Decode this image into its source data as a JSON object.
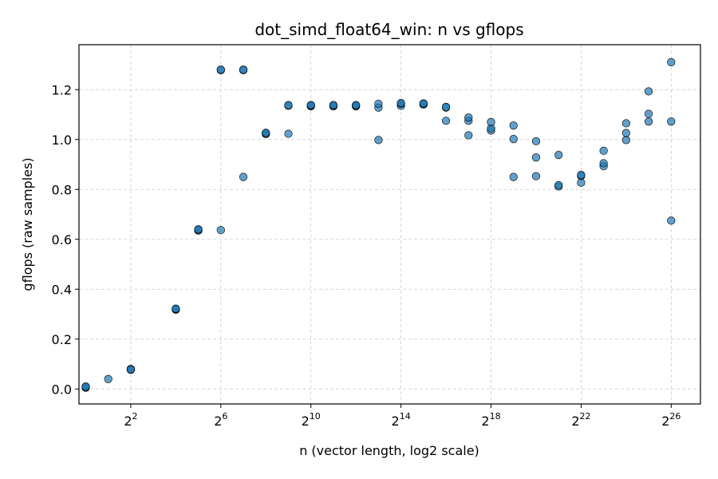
{
  "chart_data": {
    "type": "scatter",
    "title": "dot_simd_float64_win: n vs gflops",
    "xlabel": "n (vector length, log2 scale)",
    "ylabel": "gflops (raw samples)",
    "x_scale": "log2",
    "xlim_exponent": [
      -0.3,
      27.3
    ],
    "ylim": [
      -0.06,
      1.38
    ],
    "grid": true,
    "point_color": "#1f77b4",
    "x_ticks": [
      {
        "base": "2",
        "exp": "2",
        "value": 4
      },
      {
        "base": "2",
        "exp": "6",
        "value": 64
      },
      {
        "base": "2",
        "exp": "10",
        "value": 1024
      },
      {
        "base": "2",
        "exp": "14",
        "value": 16384
      },
      {
        "base": "2",
        "exp": "18",
        "value": 262144
      },
      {
        "base": "2",
        "exp": "22",
        "value": 4194304
      },
      {
        "base": "2",
        "exp": "26",
        "value": 67108864
      }
    ],
    "y_ticks": [
      {
        "label": "0.0",
        "value": 0.0
      },
      {
        "label": "0.2",
        "value": 0.2
      },
      {
        "label": "0.4",
        "value": 0.4
      },
      {
        "label": "0.6",
        "value": 0.6
      },
      {
        "label": "0.8",
        "value": 0.8
      },
      {
        "label": "1.0",
        "value": 1.0
      },
      {
        "label": "1.2",
        "value": 1.2
      }
    ],
    "points": [
      {
        "x": 1,
        "y": 0.005
      },
      {
        "x": 1,
        "y": 0.008
      },
      {
        "x": 1,
        "y": 0.01
      },
      {
        "x": 2,
        "y": 0.04
      },
      {
        "x": 4,
        "y": 0.077
      },
      {
        "x": 4,
        "y": 0.08
      },
      {
        "x": 4,
        "y": 0.078
      },
      {
        "x": 16,
        "y": 0.318
      },
      {
        "x": 16,
        "y": 0.32
      },
      {
        "x": 16,
        "y": 0.322
      },
      {
        "x": 32,
        "y": 0.635
      },
      {
        "x": 32,
        "y": 0.638
      },
      {
        "x": 32,
        "y": 0.64
      },
      {
        "x": 64,
        "y": 0.637
      },
      {
        "x": 64,
        "y": 1.278
      },
      {
        "x": 64,
        "y": 1.28
      },
      {
        "x": 128,
        "y": 0.85
      },
      {
        "x": 128,
        "y": 1.278
      },
      {
        "x": 128,
        "y": 1.28
      },
      {
        "x": 256,
        "y": 1.022
      },
      {
        "x": 256,
        "y": 1.025
      },
      {
        "x": 256,
        "y": 1.027
      },
      {
        "x": 512,
        "y": 1.023
      },
      {
        "x": 512,
        "y": 1.135
      },
      {
        "x": 512,
        "y": 1.138
      },
      {
        "x": 1024,
        "y": 1.133
      },
      {
        "x": 1024,
        "y": 1.136
      },
      {
        "x": 1024,
        "y": 1.138
      },
      {
        "x": 2048,
        "y": 1.133
      },
      {
        "x": 2048,
        "y": 1.136
      },
      {
        "x": 2048,
        "y": 1.138
      },
      {
        "x": 4096,
        "y": 1.133
      },
      {
        "x": 4096,
        "y": 1.136
      },
      {
        "x": 4096,
        "y": 1.138
      },
      {
        "x": 8192,
        "y": 0.998
      },
      {
        "x": 8192,
        "y": 1.128
      },
      {
        "x": 8192,
        "y": 1.143
      },
      {
        "x": 16384,
        "y": 1.135
      },
      {
        "x": 16384,
        "y": 1.143
      },
      {
        "x": 16384,
        "y": 1.146
      },
      {
        "x": 32768,
        "y": 1.14
      },
      {
        "x": 32768,
        "y": 1.143
      },
      {
        "x": 32768,
        "y": 1.145
      },
      {
        "x": 65536,
        "y": 1.075
      },
      {
        "x": 65536,
        "y": 1.128
      },
      {
        "x": 65536,
        "y": 1.131
      },
      {
        "x": 131072,
        "y": 1.017
      },
      {
        "x": 131072,
        "y": 1.075
      },
      {
        "x": 131072,
        "y": 1.088
      },
      {
        "x": 262144,
        "y": 1.036
      },
      {
        "x": 262144,
        "y": 1.045
      },
      {
        "x": 262144,
        "y": 1.07
      },
      {
        "x": 524288,
        "y": 0.85
      },
      {
        "x": 524288,
        "y": 1.002
      },
      {
        "x": 524288,
        "y": 1.056
      },
      {
        "x": 1048576,
        "y": 0.853
      },
      {
        "x": 1048576,
        "y": 0.928
      },
      {
        "x": 1048576,
        "y": 0.993
      },
      {
        "x": 2097152,
        "y": 0.812
      },
      {
        "x": 2097152,
        "y": 0.817
      },
      {
        "x": 2097152,
        "y": 0.938
      },
      {
        "x": 4194304,
        "y": 0.827
      },
      {
        "x": 4194304,
        "y": 0.854
      },
      {
        "x": 4194304,
        "y": 0.858
      },
      {
        "x": 8388608,
        "y": 0.893
      },
      {
        "x": 8388608,
        "y": 0.905
      },
      {
        "x": 8388608,
        "y": 0.955
      },
      {
        "x": 16777216,
        "y": 0.998
      },
      {
        "x": 16777216,
        "y": 1.026
      },
      {
        "x": 16777216,
        "y": 1.065
      },
      {
        "x": 33554432,
        "y": 1.072
      },
      {
        "x": 33554432,
        "y": 1.103
      },
      {
        "x": 33554432,
        "y": 1.193
      },
      {
        "x": 67108864,
        "y": 0.675
      },
      {
        "x": 67108864,
        "y": 1.072
      },
      {
        "x": 67108864,
        "y": 1.31
      }
    ]
  }
}
